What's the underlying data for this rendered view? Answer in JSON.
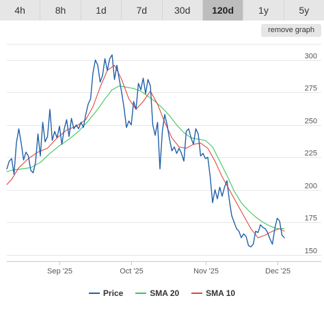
{
  "tabs": [
    "4h",
    "8h",
    "1d",
    "7d",
    "30d",
    "120d",
    "1y",
    "5y"
  ],
  "active_tab": "120d",
  "remove_graph_label": "remove graph",
  "chart_data": {
    "type": "line",
    "title": "",
    "xlabel": "",
    "ylabel": "",
    "grid": true,
    "legend_position": "bottom-center",
    "ylim": [
      145,
      312
    ],
    "xlim": [
      "2025-08-10",
      "2025-12-10"
    ],
    "y_ticks": [
      150,
      175,
      200,
      225,
      250,
      275,
      300
    ],
    "x_ticks": [
      {
        "date": "2025-09-01",
        "label": "Sep '25"
      },
      {
        "date": "2025-10-01",
        "label": "Oct '25"
      },
      {
        "date": "2025-11-01",
        "label": "Nov '25"
      },
      {
        "date": "2025-12-01",
        "label": "Dec '25"
      }
    ],
    "series": [
      {
        "name": "Price",
        "color": "#1f5fa8",
        "points": [
          [
            "2025-08-10",
            216
          ],
          [
            "2025-08-11",
            222
          ],
          [
            "2025-08-12",
            224
          ],
          [
            "2025-08-13",
            212
          ],
          [
            "2025-08-14",
            236
          ],
          [
            "2025-08-15",
            247
          ],
          [
            "2025-08-16",
            236
          ],
          [
            "2025-08-17",
            223
          ],
          [
            "2025-08-18",
            229
          ],
          [
            "2025-08-19",
            226
          ],
          [
            "2025-08-20",
            215
          ],
          [
            "2025-08-21",
            213
          ],
          [
            "2025-08-22",
            221
          ],
          [
            "2025-08-23",
            243
          ],
          [
            "2025-08-24",
            226
          ],
          [
            "2025-08-25",
            252
          ],
          [
            "2025-08-26",
            237
          ],
          [
            "2025-08-27",
            241
          ],
          [
            "2025-08-28",
            262
          ],
          [
            "2025-08-29",
            238
          ],
          [
            "2025-08-30",
            245
          ],
          [
            "2025-08-31",
            240
          ],
          [
            "2025-09-01",
            249
          ],
          [
            "2025-09-02",
            235
          ],
          [
            "2025-09-03",
            247
          ],
          [
            "2025-09-04",
            254
          ],
          [
            "2025-09-05",
            241
          ],
          [
            "2025-09-06",
            255
          ],
          [
            "2025-09-07",
            247
          ],
          [
            "2025-09-08",
            250
          ],
          [
            "2025-09-09",
            247
          ],
          [
            "2025-09-10",
            252
          ],
          [
            "2025-09-11",
            248
          ],
          [
            "2025-09-12",
            258
          ],
          [
            "2025-09-13",
            266
          ],
          [
            "2025-09-14",
            270
          ],
          [
            "2025-09-15",
            290
          ],
          [
            "2025-09-16",
            300
          ],
          [
            "2025-09-17",
            296
          ],
          [
            "2025-09-18",
            283
          ],
          [
            "2025-09-19",
            288
          ],
          [
            "2025-09-20",
            301
          ],
          [
            "2025-09-21",
            292
          ],
          [
            "2025-09-22",
            301
          ],
          [
            "2025-09-23",
            304
          ],
          [
            "2025-09-24",
            285
          ],
          [
            "2025-09-25",
            296
          ],
          [
            "2025-09-26",
            285
          ],
          [
            "2025-09-27",
            275
          ],
          [
            "2025-09-28",
            263
          ],
          [
            "2025-09-29",
            248
          ],
          [
            "2025-09-30",
            253
          ],
          [
            "2025-10-01",
            250
          ],
          [
            "2025-10-02",
            268
          ],
          [
            "2025-10-03",
            262
          ],
          [
            "2025-10-04",
            282
          ],
          [
            "2025-10-05",
            277
          ],
          [
            "2025-10-06",
            286
          ],
          [
            "2025-10-07",
            274
          ],
          [
            "2025-10-08",
            285
          ],
          [
            "2025-10-09",
            280
          ],
          [
            "2025-10-10",
            250
          ],
          [
            "2025-10-11",
            242
          ],
          [
            "2025-10-12",
            252
          ],
          [
            "2025-10-13",
            216
          ],
          [
            "2025-10-14",
            245
          ],
          [
            "2025-10-15",
            258
          ],
          [
            "2025-10-16",
            250
          ],
          [
            "2025-10-17",
            239
          ],
          [
            "2025-10-18",
            230
          ],
          [
            "2025-10-19",
            233
          ],
          [
            "2025-10-20",
            228
          ],
          [
            "2025-10-21",
            232
          ],
          [
            "2025-10-22",
            228
          ],
          [
            "2025-10-23",
            222
          ],
          [
            "2025-10-24",
            245
          ],
          [
            "2025-10-25",
            247
          ],
          [
            "2025-10-26",
            240
          ],
          [
            "2025-10-27",
            235
          ],
          [
            "2025-10-28",
            247
          ],
          [
            "2025-10-29",
            243
          ],
          [
            "2025-10-30",
            226
          ],
          [
            "2025-10-31",
            228
          ],
          [
            "2025-11-01",
            224
          ],
          [
            "2025-11-02",
            225
          ],
          [
            "2025-11-03",
            210
          ],
          [
            "2025-11-04",
            190
          ],
          [
            "2025-11-05",
            200
          ],
          [
            "2025-11-06",
            193
          ],
          [
            "2025-11-07",
            202
          ],
          [
            "2025-11-08",
            195
          ],
          [
            "2025-11-09",
            202
          ],
          [
            "2025-11-10",
            207
          ],
          [
            "2025-11-11",
            192
          ],
          [
            "2025-11-12",
            180
          ],
          [
            "2025-11-13",
            175
          ],
          [
            "2025-11-14",
            170
          ],
          [
            "2025-11-15",
            168
          ],
          [
            "2025-11-16",
            163
          ],
          [
            "2025-11-17",
            166
          ],
          [
            "2025-11-18",
            164
          ],
          [
            "2025-11-19",
            157
          ],
          [
            "2025-11-20",
            156
          ],
          [
            "2025-11-21",
            158
          ],
          [
            "2025-11-22",
            168
          ],
          [
            "2025-11-23",
            167
          ],
          [
            "2025-11-24",
            173
          ],
          [
            "2025-11-25",
            171
          ],
          [
            "2025-11-26",
            170
          ],
          [
            "2025-11-27",
            167
          ],
          [
            "2025-11-28",
            162
          ],
          [
            "2025-11-29",
            158
          ],
          [
            "2025-11-30",
            170
          ],
          [
            "2025-12-01",
            178
          ],
          [
            "2025-12-02",
            176
          ],
          [
            "2025-12-03",
            165
          ],
          [
            "2025-12-04",
            163
          ]
        ]
      },
      {
        "name": "SMA 20",
        "color": "#3fc25a",
        "points": [
          [
            "2025-08-10",
            214
          ],
          [
            "2025-08-12",
            215
          ],
          [
            "2025-08-16",
            216
          ],
          [
            "2025-08-20",
            217
          ],
          [
            "2025-08-24",
            221
          ],
          [
            "2025-08-28",
            228
          ],
          [
            "2025-09-01",
            234
          ],
          [
            "2025-09-05",
            239
          ],
          [
            "2025-09-09",
            245
          ],
          [
            "2025-09-13",
            253
          ],
          [
            "2025-09-17",
            262
          ],
          [
            "2025-09-20",
            270
          ],
          [
            "2025-09-23",
            277
          ],
          [
            "2025-09-26",
            280
          ],
          [
            "2025-09-29",
            279
          ],
          [
            "2025-10-02",
            278
          ],
          [
            "2025-10-05",
            276
          ],
          [
            "2025-10-08",
            272
          ],
          [
            "2025-10-11",
            268
          ],
          [
            "2025-10-14",
            263
          ],
          [
            "2025-10-17",
            257
          ],
          [
            "2025-10-20",
            250
          ],
          [
            "2025-10-23",
            244
          ],
          [
            "2025-10-26",
            240
          ],
          [
            "2025-10-29",
            239
          ],
          [
            "2025-11-01",
            238
          ],
          [
            "2025-11-04",
            233
          ],
          [
            "2025-11-07",
            222
          ],
          [
            "2025-11-10",
            211
          ],
          [
            "2025-11-13",
            199
          ],
          [
            "2025-11-16",
            190
          ],
          [
            "2025-11-19",
            184
          ],
          [
            "2025-11-22",
            179
          ],
          [
            "2025-11-25",
            175
          ],
          [
            "2025-11-28",
            172
          ],
          [
            "2025-12-01",
            170
          ],
          [
            "2025-12-04",
            170
          ]
        ]
      },
      {
        "name": "SMA 10",
        "color": "#e0453d",
        "points": [
          [
            "2025-08-10",
            204
          ],
          [
            "2025-08-12",
            208
          ],
          [
            "2025-08-15",
            217
          ],
          [
            "2025-08-19",
            224
          ],
          [
            "2025-08-23",
            229
          ],
          [
            "2025-08-27",
            232
          ],
          [
            "2025-08-31",
            240
          ],
          [
            "2025-09-04",
            246
          ],
          [
            "2025-09-08",
            249
          ],
          [
            "2025-09-12",
            254
          ],
          [
            "2025-09-15",
            264
          ],
          [
            "2025-09-18",
            279
          ],
          [
            "2025-09-21",
            292
          ],
          [
            "2025-09-24",
            296
          ],
          [
            "2025-09-27",
            285
          ],
          [
            "2025-09-30",
            270
          ],
          [
            "2025-10-03",
            262
          ],
          [
            "2025-10-06",
            268
          ],
          [
            "2025-10-09",
            276
          ],
          [
            "2025-10-12",
            266
          ],
          [
            "2025-10-15",
            252
          ],
          [
            "2025-10-18",
            240
          ],
          [
            "2025-10-21",
            233
          ],
          [
            "2025-10-24",
            232
          ],
          [
            "2025-10-27",
            235
          ],
          [
            "2025-10-30",
            236
          ],
          [
            "2025-11-02",
            232
          ],
          [
            "2025-11-05",
            222
          ],
          [
            "2025-11-08",
            210
          ],
          [
            "2025-11-11",
            200
          ],
          [
            "2025-11-14",
            190
          ],
          [
            "2025-11-17",
            180
          ],
          [
            "2025-11-20",
            170
          ],
          [
            "2025-11-23",
            163
          ],
          [
            "2025-11-26",
            165
          ],
          [
            "2025-11-29",
            168
          ],
          [
            "2025-12-02",
            170
          ],
          [
            "2025-12-04",
            168
          ]
        ]
      }
    ]
  }
}
